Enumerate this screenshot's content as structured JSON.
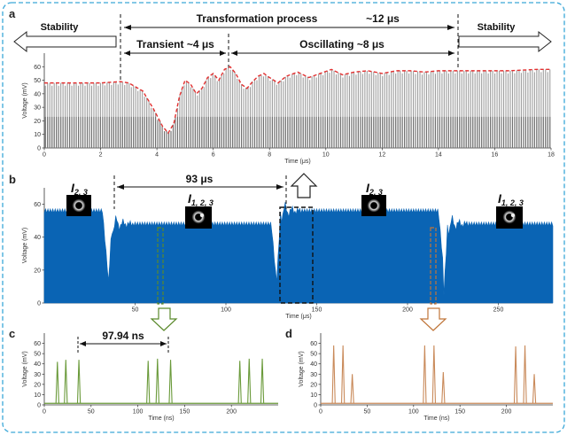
{
  "panels": {
    "a": "a",
    "b": "b",
    "c": "c",
    "d": "d"
  },
  "annotations": {
    "stability_left": "Stability",
    "stability_right": "Stability",
    "transformation": "Transformation process",
    "transformation_time": "~12 μs",
    "transient": "Transient ~4 μs",
    "oscillating": "Oscillating ~8 μs",
    "period_b": "93 μs",
    "period_c": "97.94 ns",
    "cap1_main": "I",
    "cap1_sub": "2, 3",
    "cap2_main": "I",
    "cap2_sub": "1, 2, 3",
    "cap3_main": "I",
    "cap3_sub": "2, 3",
    "cap4_main": "I",
    "cap4_sub": "1, 2, 3"
  },
  "colors": {
    "border": "#3aa7d8",
    "grey_trace": "#9e9e9e",
    "envelope": "#e23030",
    "blue_trace": "#0a64b4",
    "green_trace": "#6a9a3a",
    "orange_trace": "#c98a5a",
    "green_box": "#5b8a2c",
    "orange_box": "#c0763a"
  },
  "chart_data": [
    {
      "id": "a",
      "type": "area",
      "xlabel": "Time (μs)",
      "ylabel": "Voltage (mV)",
      "xlim": [
        0,
        18
      ],
      "ylim": [
        0,
        70
      ],
      "xticks": [
        "0",
        "2",
        "4",
        "6",
        "8",
        "10",
        "12",
        "14",
        "16",
        "18"
      ],
      "yticks": [
        "0",
        "10",
        "20",
        "30",
        "40",
        "50",
        "60"
      ],
      "envelope": {
        "x": [
          0,
          1,
          2,
          2.7,
          3,
          3.5,
          3.9,
          4.2,
          4.4,
          4.6,
          4.8,
          5.0,
          5.2,
          5.4,
          5.6,
          5.8,
          6.0,
          6.2,
          6.4,
          6.6,
          6.8,
          7.0,
          7.2,
          7.4,
          7.6,
          7.8,
          8.0,
          8.3,
          8.6,
          9.0,
          9.4,
          9.8,
          10.2,
          10.6,
          11.0,
          11.5,
          12.0,
          12.5,
          13.0,
          13.5,
          14.0,
          14.7,
          15.5,
          16.5,
          17.5,
          18
        ],
        "y": [
          48,
          48,
          48,
          49,
          48,
          42,
          28,
          16,
          11,
          18,
          38,
          50,
          47,
          40,
          44,
          52,
          55,
          50,
          58,
          60,
          55,
          47,
          44,
          49,
          53,
          55,
          52,
          48,
          53,
          56,
          52,
          55,
          58,
          54,
          56,
          57,
          55,
          57,
          57,
          56,
          57,
          57,
          57,
          57,
          58,
          58
        ]
      },
      "baseline_level": 23
    },
    {
      "id": "b",
      "type": "area",
      "xlabel": "Time (μs)",
      "ylabel": "Voltage (mV)",
      "xlim": [
        0,
        280
      ],
      "ylim": [
        0,
        70
      ],
      "xticks": [
        "50",
        "100",
        "150",
        "200",
        "250"
      ],
      "yticks": [
        "0",
        "20",
        "40",
        "60"
      ],
      "stable_level": 56,
      "oscillating_level": 48,
      "transitions_at": [
        35,
        128,
        220
      ]
    },
    {
      "id": "c",
      "type": "line",
      "xlabel": "Time (ns)",
      "ylabel": "Voltage (mV)",
      "xlim": [
        0,
        250
      ],
      "ylim": [
        0,
        70
      ],
      "xticks": [
        "0",
        "50",
        "100",
        "150",
        "200"
      ],
      "yticks": [
        "0",
        "10",
        "20",
        "30",
        "40",
        "50",
        "60"
      ],
      "pulses": [
        {
          "x": 14,
          "y": 42
        },
        {
          "x": 23,
          "y": 44
        },
        {
          "x": 37,
          "y": 44
        },
        {
          "x": 111,
          "y": 43
        },
        {
          "x": 121,
          "y": 45
        },
        {
          "x": 135,
          "y": 44
        },
        {
          "x": 209,
          "y": 43
        },
        {
          "x": 219,
          "y": 45
        },
        {
          "x": 233,
          "y": 45
        }
      ]
    },
    {
      "id": "d",
      "type": "line",
      "xlabel": "Time (ns)",
      "ylabel": "Voltage (mV)",
      "xlim": [
        0,
        250
      ],
      "ylim": [
        0,
        70
      ],
      "xticks": [
        "0",
        "50",
        "100",
        "150",
        "200"
      ],
      "yticks": [
        "0",
        "10",
        "20",
        "30",
        "40",
        "50",
        "60"
      ],
      "pulses": [
        {
          "x": 14,
          "y": 58
        },
        {
          "x": 24,
          "y": 58
        },
        {
          "x": 34,
          "y": 30
        },
        {
          "x": 112,
          "y": 58
        },
        {
          "x": 122,
          "y": 58
        },
        {
          "x": 132,
          "y": 32
        },
        {
          "x": 210,
          "y": 57
        },
        {
          "x": 220,
          "y": 58
        },
        {
          "x": 230,
          "y": 30
        }
      ]
    }
  ]
}
